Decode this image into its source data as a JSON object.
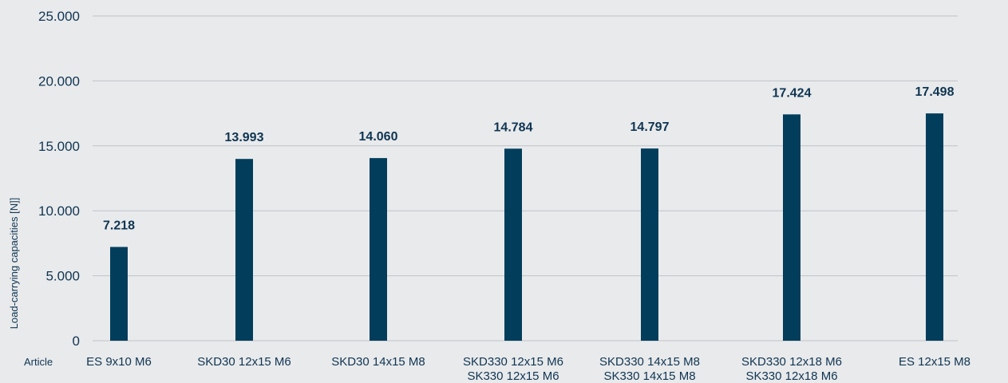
{
  "chart_data": {
    "type": "bar",
    "ylabel": "Load-carrying capacities [N]]",
    "xlabel": "Article",
    "ylim": [
      0,
      25000
    ],
    "yticks": [
      0,
      5000,
      10000,
      15000,
      20000,
      25000
    ],
    "ytick_labels": [
      "0",
      "5.000",
      "10.000",
      "15.000",
      "20.000",
      "25.000"
    ],
    "grid": true,
    "categories": [
      [
        "ES 9x10 M6"
      ],
      [
        "SKD30 12x15 M6"
      ],
      [
        "SKD30 14x15 M8"
      ],
      [
        "SKD330 12x15 M6",
        "SK330 12x15 M6"
      ],
      [
        "SKD330 14x15 M8",
        "SK330 14x15 M8"
      ],
      [
        "SKD330 12x18 M6",
        "SK330 12x18 M6"
      ],
      [
        "ES 12x15 M8"
      ]
    ],
    "values": [
      7218,
      13993,
      14060,
      14784,
      14797,
      17424,
      17498
    ],
    "value_labels": [
      "7.218",
      "13.993",
      "14.060",
      "14.784",
      "14.797",
      "17.424",
      "17.498"
    ],
    "bar_color": "#023e5c",
    "grid_color": "#bfc3c7",
    "text_color": "#0f3552"
  }
}
